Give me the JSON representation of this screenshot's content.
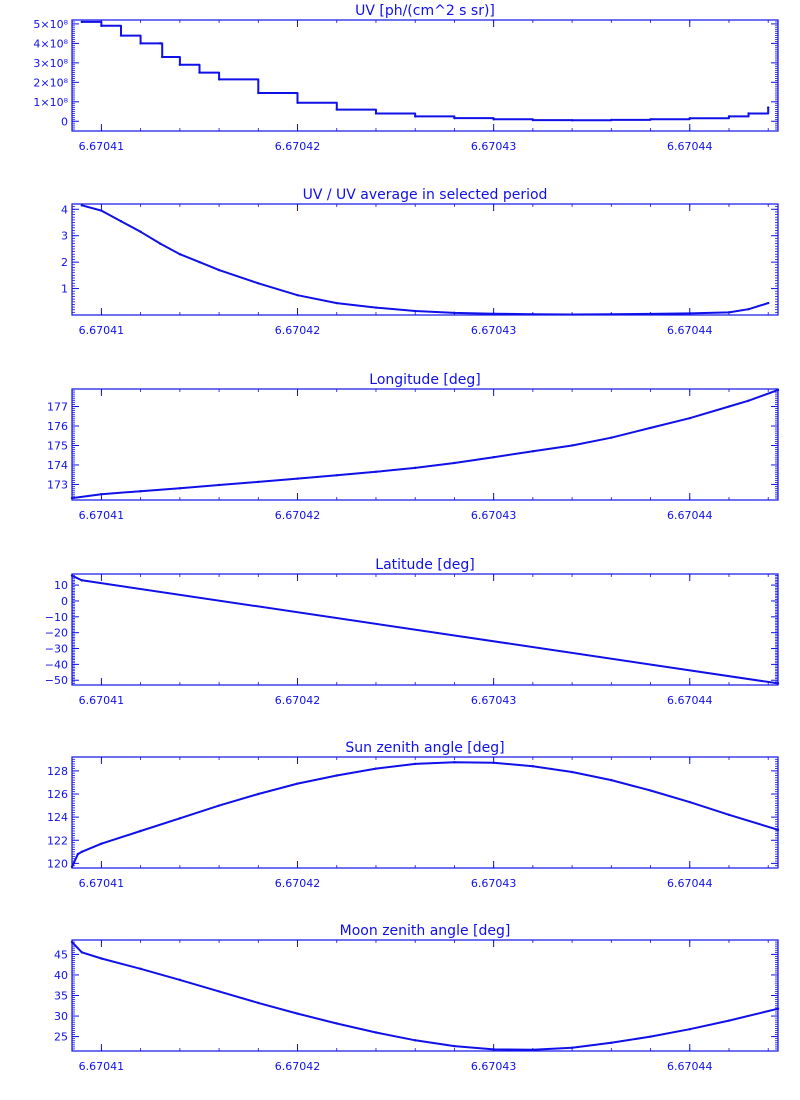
{
  "colors": {
    "axis": "#1010e8",
    "line": "#1010e8",
    "background": "#ffffff"
  },
  "chart_data": [
    {
      "type": "line",
      "title": "UV [ph/(cm^2 s sr)]",
      "xlabel": "",
      "ylabel": "",
      "xlim": [
        6.6704085,
        6.6704445
      ],
      "ylim": [
        -50000000,
        520000000
      ],
      "xticks": [
        6.67041,
        6.67042,
        6.67043,
        6.67044
      ],
      "xtick_labels": [
        "6.67041",
        "6.67042",
        "6.67043",
        "6.67044"
      ],
      "yticks": [
        0,
        100000000,
        200000000,
        300000000,
        400000000,
        500000000
      ],
      "ytick_labels": [
        "0",
        "1×10⁸",
        "2×10⁸",
        "3×10⁸",
        "4×10⁸",
        "5×10⁸"
      ],
      "step": true,
      "x": [
        6.670409,
        6.67041,
        6.670411,
        6.670412,
        6.670413,
        6.6704131,
        6.670414,
        6.670415,
        6.670416,
        6.670418,
        6.67042,
        6.670422,
        6.670424,
        6.670426,
        6.670428,
        6.67043,
        6.670432,
        6.670434,
        6.670436,
        6.670438,
        6.67044,
        6.670442,
        6.670443,
        6.670444
      ],
      "y": [
        510000000,
        490000000,
        440000000,
        400000000,
        400000000,
        330000000,
        290000000,
        250000000,
        215000000,
        145000000,
        95000000,
        60000000,
        40000000,
        25000000,
        16000000,
        10000000,
        6000000,
        5000000,
        7000000,
        10000000,
        15000000,
        25000000,
        40000000,
        70000000
      ]
    },
    {
      "type": "line",
      "title": "UV / UV average in selected period",
      "xlabel": "",
      "ylabel": "",
      "xlim": [
        6.6704085,
        6.6704445
      ],
      "ylim": [
        0,
        4.2
      ],
      "xticks": [
        6.67041,
        6.67042,
        6.67043,
        6.67044
      ],
      "xtick_labels": [
        "6.67041",
        "6.67042",
        "6.67043",
        "6.67044"
      ],
      "yticks": [
        1,
        2,
        3,
        4
      ],
      "ytick_labels": [
        "1",
        "2",
        "3",
        "4"
      ],
      "x": [
        6.670409,
        6.67041,
        6.670411,
        6.670412,
        6.670413,
        6.670414,
        6.670415,
        6.670416,
        6.670418,
        6.67042,
        6.670422,
        6.670424,
        6.670426,
        6.670428,
        6.67043,
        6.670432,
        6.670434,
        6.670436,
        6.670438,
        6.67044,
        6.670442,
        6.670443,
        6.670444
      ],
      "y": [
        4.15,
        3.95,
        3.55,
        3.15,
        2.7,
        2.3,
        2.0,
        1.7,
        1.2,
        0.75,
        0.45,
        0.28,
        0.15,
        0.08,
        0.05,
        0.03,
        0.02,
        0.03,
        0.04,
        0.06,
        0.1,
        0.22,
        0.45
      ]
    },
    {
      "type": "line",
      "title": "Longitude [deg]",
      "xlabel": "",
      "ylabel": "",
      "xlim": [
        6.6704085,
        6.6704445
      ],
      "ylim": [
        172.2,
        177.9
      ],
      "xticks": [
        6.67041,
        6.67042,
        6.67043,
        6.67044
      ],
      "xtick_labels": [
        "6.67041",
        "6.67042",
        "6.67043",
        "6.67044"
      ],
      "yticks": [
        173,
        174,
        175,
        176,
        177
      ],
      "ytick_labels": [
        "173",
        "174",
        "175",
        "176",
        "177"
      ],
      "x": [
        6.6704085,
        6.67041,
        6.670412,
        6.670414,
        6.670416,
        6.670418,
        6.67042,
        6.670422,
        6.670424,
        6.670426,
        6.670428,
        6.67043,
        6.670432,
        6.670434,
        6.670436,
        6.670438,
        6.67044,
        6.670442,
        6.670443,
        6.6704445
      ],
      "y": [
        172.3,
        172.5,
        172.65,
        172.8,
        172.97,
        173.13,
        173.3,
        173.47,
        173.65,
        173.85,
        174.1,
        174.4,
        174.7,
        175.0,
        175.4,
        175.9,
        176.4,
        177.0,
        177.3,
        177.85
      ]
    },
    {
      "type": "line",
      "title": "Latitude [deg]",
      "xlabel": "",
      "ylabel": "",
      "xlim": [
        6.6704085,
        6.6704445
      ],
      "ylim": [
        -53,
        17
      ],
      "xticks": [
        6.67041,
        6.67042,
        6.67043,
        6.67044
      ],
      "xtick_labels": [
        "6.67041",
        "6.67042",
        "6.67043",
        "6.67044"
      ],
      "yticks": [
        -50,
        -40,
        -30,
        -20,
        -10,
        0,
        10
      ],
      "ytick_labels": [
        "−50",
        "−40",
        "−30",
        "−20",
        "−10",
        "0",
        "10"
      ],
      "x": [
        6.6704085,
        6.670409,
        6.6704445
      ],
      "y": [
        16,
        13,
        -52
      ]
    },
    {
      "type": "line",
      "title": "Sun zenith angle [deg]",
      "xlabel": "",
      "ylabel": "",
      "xlim": [
        6.6704085,
        6.6704445
      ],
      "ylim": [
        119.6,
        129.2
      ],
      "xticks": [
        6.67041,
        6.67042,
        6.67043,
        6.67044
      ],
      "xtick_labels": [
        "6.67041",
        "6.67042",
        "6.67043",
        "6.67044"
      ],
      "yticks": [
        120,
        122,
        124,
        126,
        128
      ],
      "ytick_labels": [
        "120",
        "122",
        "124",
        "126",
        "128"
      ],
      "x": [
        6.6704085,
        6.6704088,
        6.670409,
        6.67041,
        6.670412,
        6.670414,
        6.670416,
        6.670418,
        6.67042,
        6.670422,
        6.670424,
        6.670426,
        6.670428,
        6.67043,
        6.670432,
        6.670434,
        6.670436,
        6.670438,
        6.67044,
        6.670442,
        6.6704445
      ],
      "y": [
        119.7,
        120.8,
        121.0,
        121.7,
        122.8,
        123.9,
        125.0,
        126.0,
        126.9,
        127.6,
        128.2,
        128.6,
        128.75,
        128.7,
        128.4,
        127.9,
        127.2,
        126.3,
        125.3,
        124.2,
        122.9
      ]
    },
    {
      "type": "line",
      "title": "Moon zenith angle [deg]",
      "xlabel": "",
      "ylabel": "",
      "xlim": [
        6.6704085,
        6.6704445
      ],
      "ylim": [
        21.5,
        48.5
      ],
      "xticks": [
        6.67041,
        6.67042,
        6.67043,
        6.67044
      ],
      "xtick_labels": [
        "6.67041",
        "6.67042",
        "6.67043",
        "6.67044"
      ],
      "yticks": [
        25,
        30,
        35,
        40,
        45
      ],
      "ytick_labels": [
        "25",
        "30",
        "35",
        "40",
        "45"
      ],
      "x": [
        6.6704085,
        6.670409,
        6.67041,
        6.670412,
        6.670414,
        6.670416,
        6.670418,
        6.67042,
        6.670422,
        6.670424,
        6.670426,
        6.670428,
        6.67043,
        6.670432,
        6.670434,
        6.670436,
        6.670438,
        6.67044,
        6.670442,
        6.6704445
      ],
      "y": [
        48.0,
        45.5,
        44.0,
        41.5,
        38.8,
        36.0,
        33.2,
        30.6,
        28.2,
        26.0,
        24.1,
        22.7,
        21.9,
        21.8,
        22.3,
        23.5,
        25.0,
        26.8,
        28.9,
        31.8
      ]
    }
  ]
}
